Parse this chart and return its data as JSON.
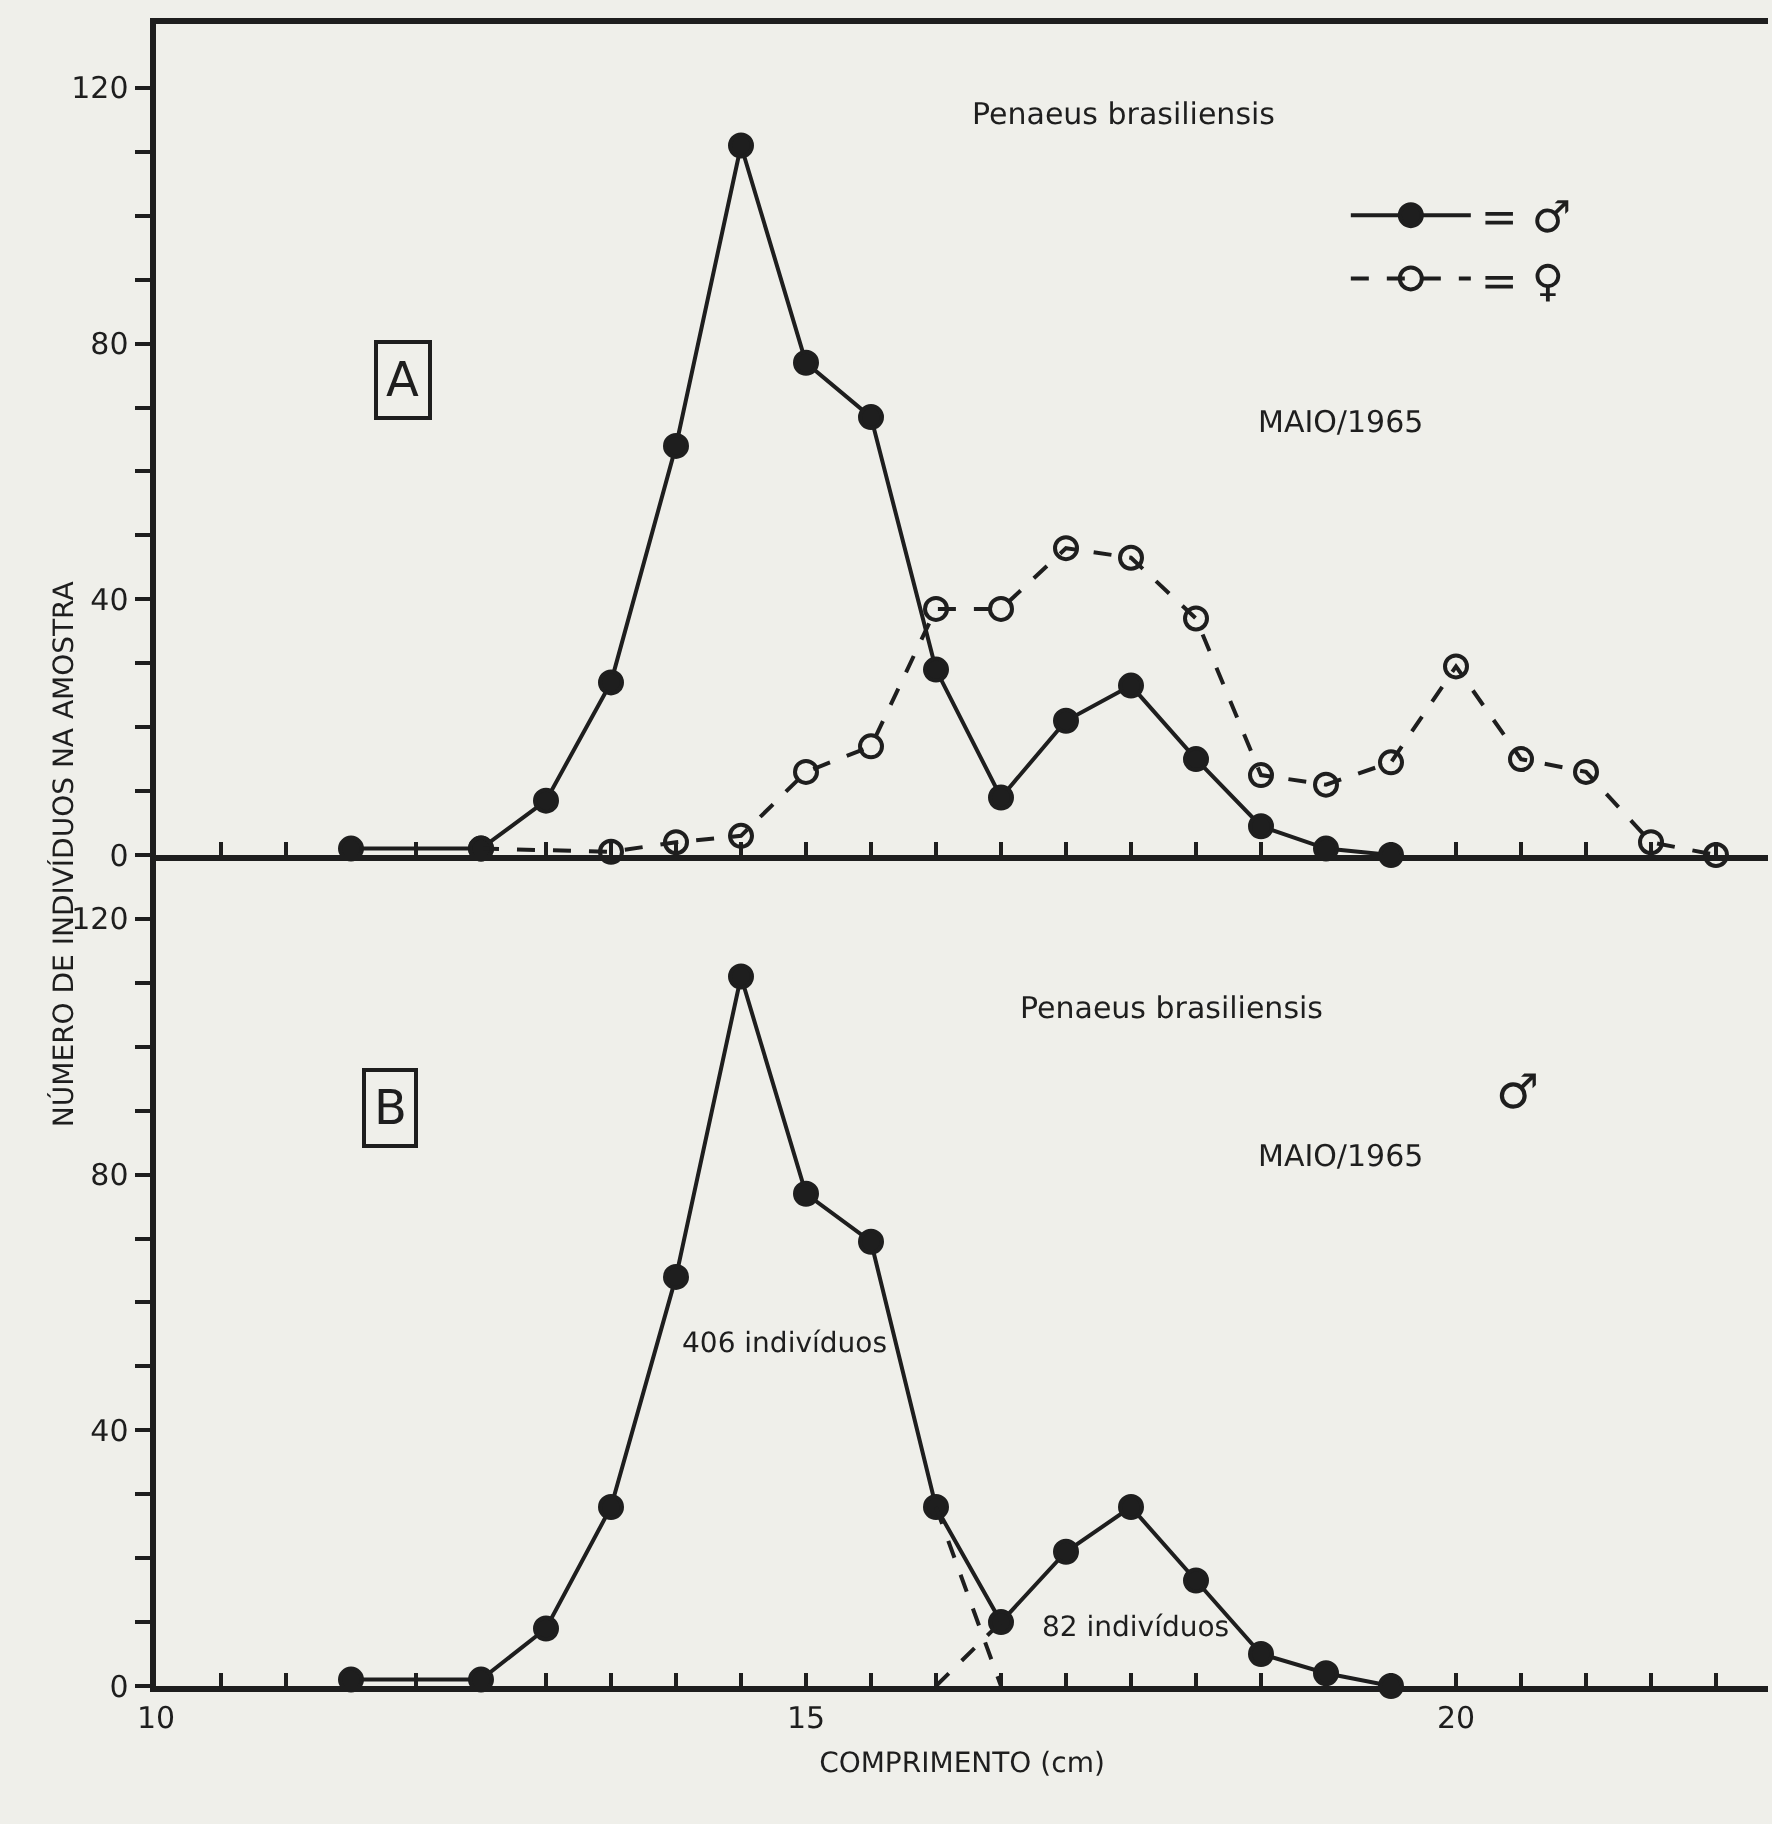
{
  "chart_data": [
    {
      "type": "line",
      "ylabel": "NÚMERO DE INDIVÍDUOS NA AMOSTRA",
      "marker": "circle",
      "legend": "top right",
      "tick_labels": "y",
      "annotations": [
        "A",
        "Penaeus brasiliensis",
        "MAIO/1965"
      ],
      "series": [
        {
          "name": "= ♂",
          "color": "#1e1e1e",
          "line_style": "solid",
          "x": [
            11.5,
            12.5,
            13,
            13.5,
            14,
            14.5,
            15,
            15.5,
            16,
            16.5,
            17,
            17.5,
            18,
            18.5,
            19,
            19.5
          ],
          "values": [
            1,
            1,
            8.5,
            27,
            64,
            111,
            77,
            68.5,
            29,
            9,
            21,
            26.5,
            15,
            4.5,
            1,
            0
          ]
        },
        {
          "name": "= ♀",
          "color": "#1e1e1e",
          "line_style": "dashed",
          "x": [
            12.5,
            13.5,
            14,
            14.5,
            15,
            15.5,
            16,
            16.5,
            17,
            17.5,
            18,
            18.5,
            19,
            19.5,
            20,
            20.5,
            21,
            21.5,
            22
          ],
          "values": [
            1,
            0.5,
            2,
            3,
            13,
            17,
            38.5,
            38.5,
            48,
            46.5,
            37,
            12.5,
            11,
            14.5,
            29.5,
            15,
            13,
            2,
            0
          ]
        }
      ],
      "xlim": [
        10,
        22.4
      ],
      "xticks": [
        {
          "value": 10,
          "label": null
        },
        {
          "value": 10.5,
          "label": null
        },
        {
          "value": 11,
          "label": null
        },
        {
          "value": 11.5,
          "label": null
        },
        {
          "value": 12,
          "label": null
        },
        {
          "value": 12.5,
          "label": null
        },
        {
          "value": 13,
          "label": null
        },
        {
          "value": 13.5,
          "label": null
        },
        {
          "value": 14,
          "label": null
        },
        {
          "value": 14.5,
          "label": null
        },
        {
          "value": 15,
          "label": null
        },
        {
          "value": 15.5,
          "label": null
        },
        {
          "value": 16,
          "label": null
        },
        {
          "value": 16.5,
          "label": null
        },
        {
          "value": 17,
          "label": null
        },
        {
          "value": 17.5,
          "label": null
        },
        {
          "value": 18,
          "label": null
        },
        {
          "value": 18.5,
          "label": null
        },
        {
          "value": 19,
          "label": null
        },
        {
          "value": 19.5,
          "label": null
        },
        {
          "value": 20,
          "label": null
        },
        {
          "value": 20.5,
          "label": null
        },
        {
          "value": 21,
          "label": null
        },
        {
          "value": 21.5,
          "label": null
        },
        {
          "value": 22,
          "label": null
        }
      ],
      "ylim": [
        0,
        130
      ],
      "yticks": [
        0,
        {
          "value": 10,
          "label": null
        },
        {
          "value": 20,
          "label": null
        },
        {
          "value": 30,
          "label": null
        },
        40,
        {
          "value": 50,
          "label": null
        },
        {
          "value": 60,
          "label": null
        },
        {
          "value": 70,
          "label": null
        },
        80,
        {
          "value": 90,
          "label": null
        },
        {
          "value": 100,
          "label": null
        },
        {
          "value": 110,
          "label": null
        },
        120
      ]
    },
    {
      "type": "line",
      "xlabel": "COMPRIMENTO (cm)",
      "marker": "circle",
      "annotations": [
        "B",
        "Penaeus brasiliensis",
        "♂",
        "MAIO/1965",
        "406 indivíduos",
        "82 indivíduos"
      ],
      "series": [
        {
          "color": "#1e1e1e",
          "line_style": "solid",
          "x": [
            11.5,
            12.5,
            13,
            13.5,
            14,
            14.5,
            15,
            15.5,
            16,
            16.5,
            17,
            17.5,
            18,
            18.5,
            19,
            19.5
          ],
          "values": [
            1,
            1,
            9,
            28,
            64,
            111,
            77,
            69.5,
            28,
            10,
            21,
            28,
            16.5,
            5,
            2,
            0
          ]
        },
        {
          "color": "#1e1e1e",
          "line_style": "dashed",
          "marker": "none",
          "x": [
            16,
            16.5
          ],
          "values": [
            28,
            0
          ]
        },
        {
          "color": "#1e1e1e",
          "line_style": "dashed",
          "marker": "none",
          "x": [
            16,
            16.5
          ],
          "values": [
            0,
            10
          ]
        }
      ],
      "xlim": [
        10,
        22.4
      ],
      "xticks": [
        10,
        {
          "value": 10.5,
          "label": null
        },
        {
          "value": 11,
          "label": null
        },
        {
          "value": 11.5,
          "label": null
        },
        {
          "value": 12,
          "label": null
        },
        {
          "value": 12.5,
          "label": null
        },
        {
          "value": 13,
          "label": null
        },
        {
          "value": 13.5,
          "label": null
        },
        {
          "value": 14,
          "label": null
        },
        {
          "value": 14.5,
          "label": null
        },
        15,
        {
          "value": 15.5,
          "label": null
        },
        {
          "value": 16,
          "label": null
        },
        {
          "value": 16.5,
          "label": null
        },
        {
          "value": 17,
          "label": null
        },
        {
          "value": 17.5,
          "label": null
        },
        {
          "value": 18,
          "label": null
        },
        {
          "value": 18.5,
          "label": null
        },
        {
          "value": 19,
          "label": null
        },
        {
          "value": 19.5,
          "label": null
        },
        20,
        {
          "value": 20.5,
          "label": null
        },
        {
          "value": 21,
          "label": null
        },
        {
          "value": 21.5,
          "label": null
        },
        {
          "value": 22,
          "label": null
        }
      ],
      "ylim": [
        0,
        130
      ],
      "yticks": [
        0,
        {
          "value": 10,
          "label": null
        },
        {
          "value": 20,
          "label": null
        },
        {
          "value": 30,
          "label": null
        },
        40,
        {
          "value": 50,
          "label": null
        },
        {
          "value": 60,
          "label": null
        },
        {
          "value": 70,
          "label": null
        },
        80,
        {
          "value": 90,
          "label": null
        },
        {
          "value": 100,
          "label": null
        },
        {
          "value": 110,
          "label": null
        },
        120
      ]
    }
  ]
}
